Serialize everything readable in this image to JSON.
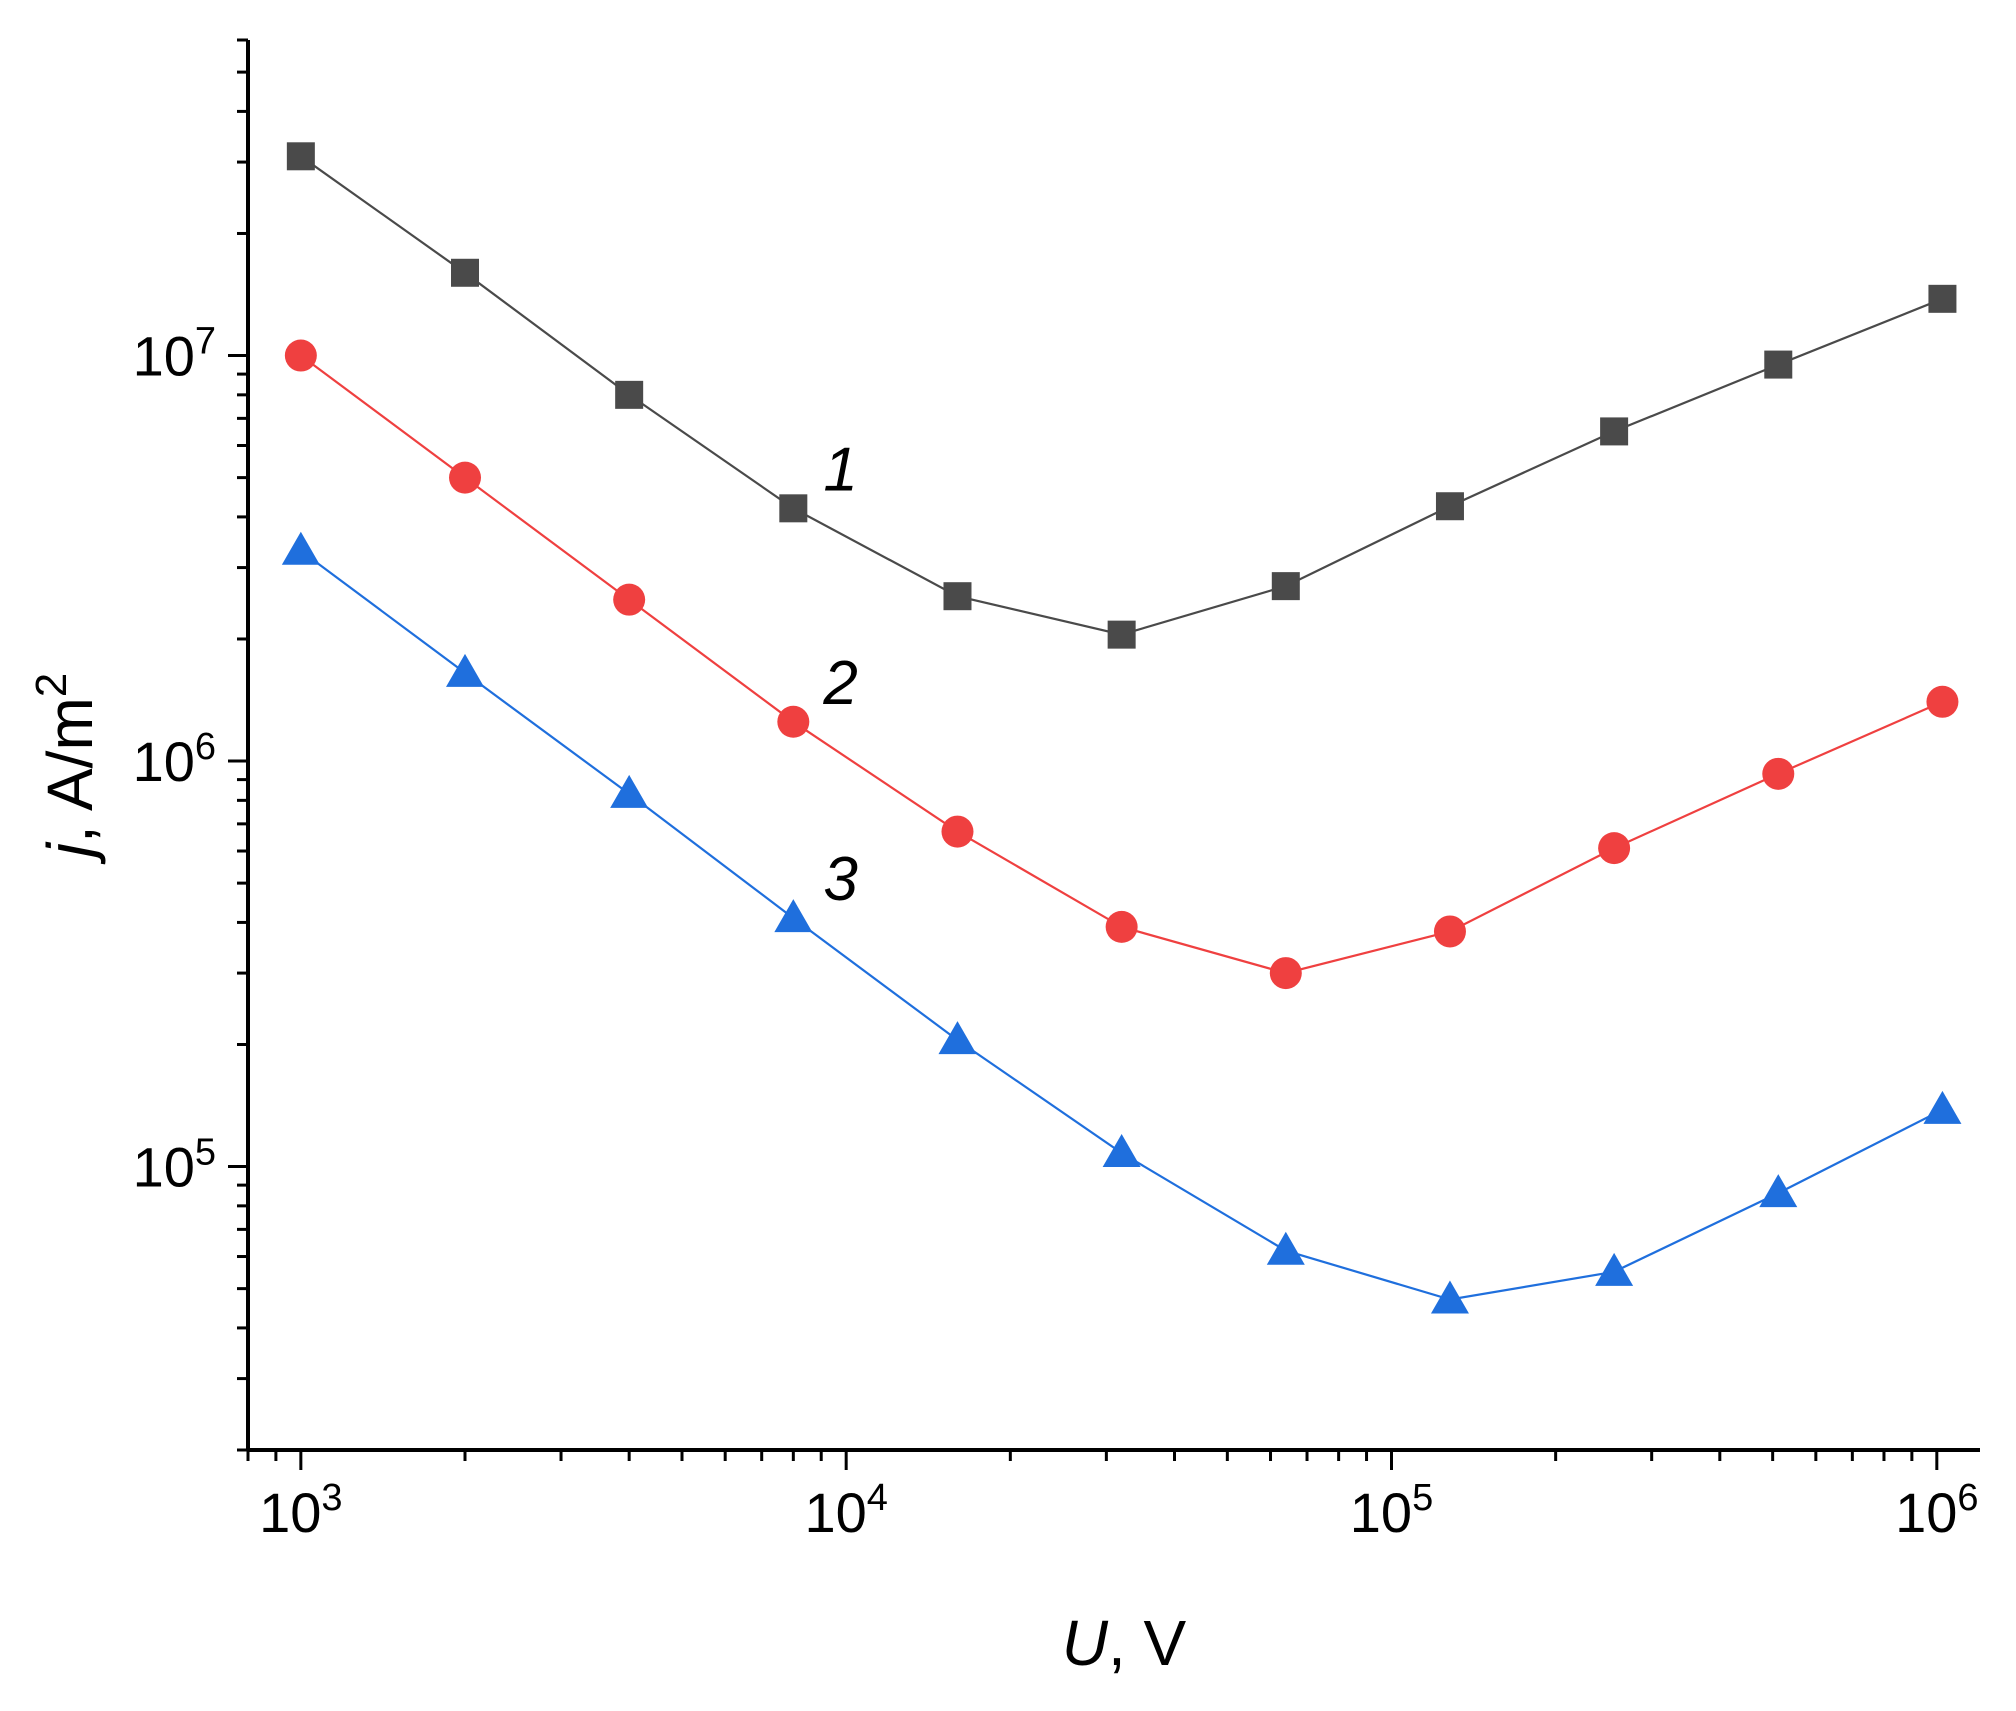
{
  "chart_data": {
    "type": "scatter",
    "xlabel": {
      "var": "U",
      "rest": ", V"
    },
    "ylabel": {
      "var": "j",
      "rest": ", A/m",
      "sup": "2"
    },
    "x_scale": "log",
    "y_scale": "log",
    "xlim": [
      800,
      1200000
    ],
    "ylim": [
      20000,
      60000000
    ],
    "x_ticks": [
      {
        "base": "10",
        "exp": "3",
        "value": 1000
      },
      {
        "base": "10",
        "exp": "4",
        "value": 10000
      },
      {
        "base": "10",
        "exp": "5",
        "value": 100000
      },
      {
        "base": "10",
        "exp": "6",
        "value": 1000000
      }
    ],
    "y_ticks": [
      {
        "base": "10",
        "exp": "5",
        "value": 100000
      },
      {
        "base": "10",
        "exp": "6",
        "value": 1000000
      },
      {
        "base": "10",
        "exp": "7",
        "value": 10000000
      }
    ],
    "grid": false,
    "legend": "none",
    "x": [
      1000,
      2000,
      4000,
      8000,
      16000,
      32000,
      64000,
      128000,
      256000,
      512000,
      1024000
    ],
    "series": [
      {
        "label": "1",
        "marker": "square",
        "color": "#4a4a4a",
        "values": [
          31000000,
          16000000,
          8000000,
          4200000,
          2550000,
          2050000,
          2700000,
          4250000,
          6500000,
          9500000,
          13800000
        ]
      },
      {
        "label": "2",
        "marker": "circle",
        "color": "#ef4040",
        "values": [
          10000000,
          5000000,
          2500000,
          1250000,
          670000,
          390000,
          300000,
          380000,
          610000,
          930000,
          1400000
        ]
      },
      {
        "label": "3",
        "marker": "triangle",
        "color": "#1f6fdd",
        "values": [
          3300000,
          1650000,
          830000,
          410000,
          205000,
          108000,
          62000,
          47000,
          55000,
          86000,
          138000
        ]
      }
    ]
  }
}
